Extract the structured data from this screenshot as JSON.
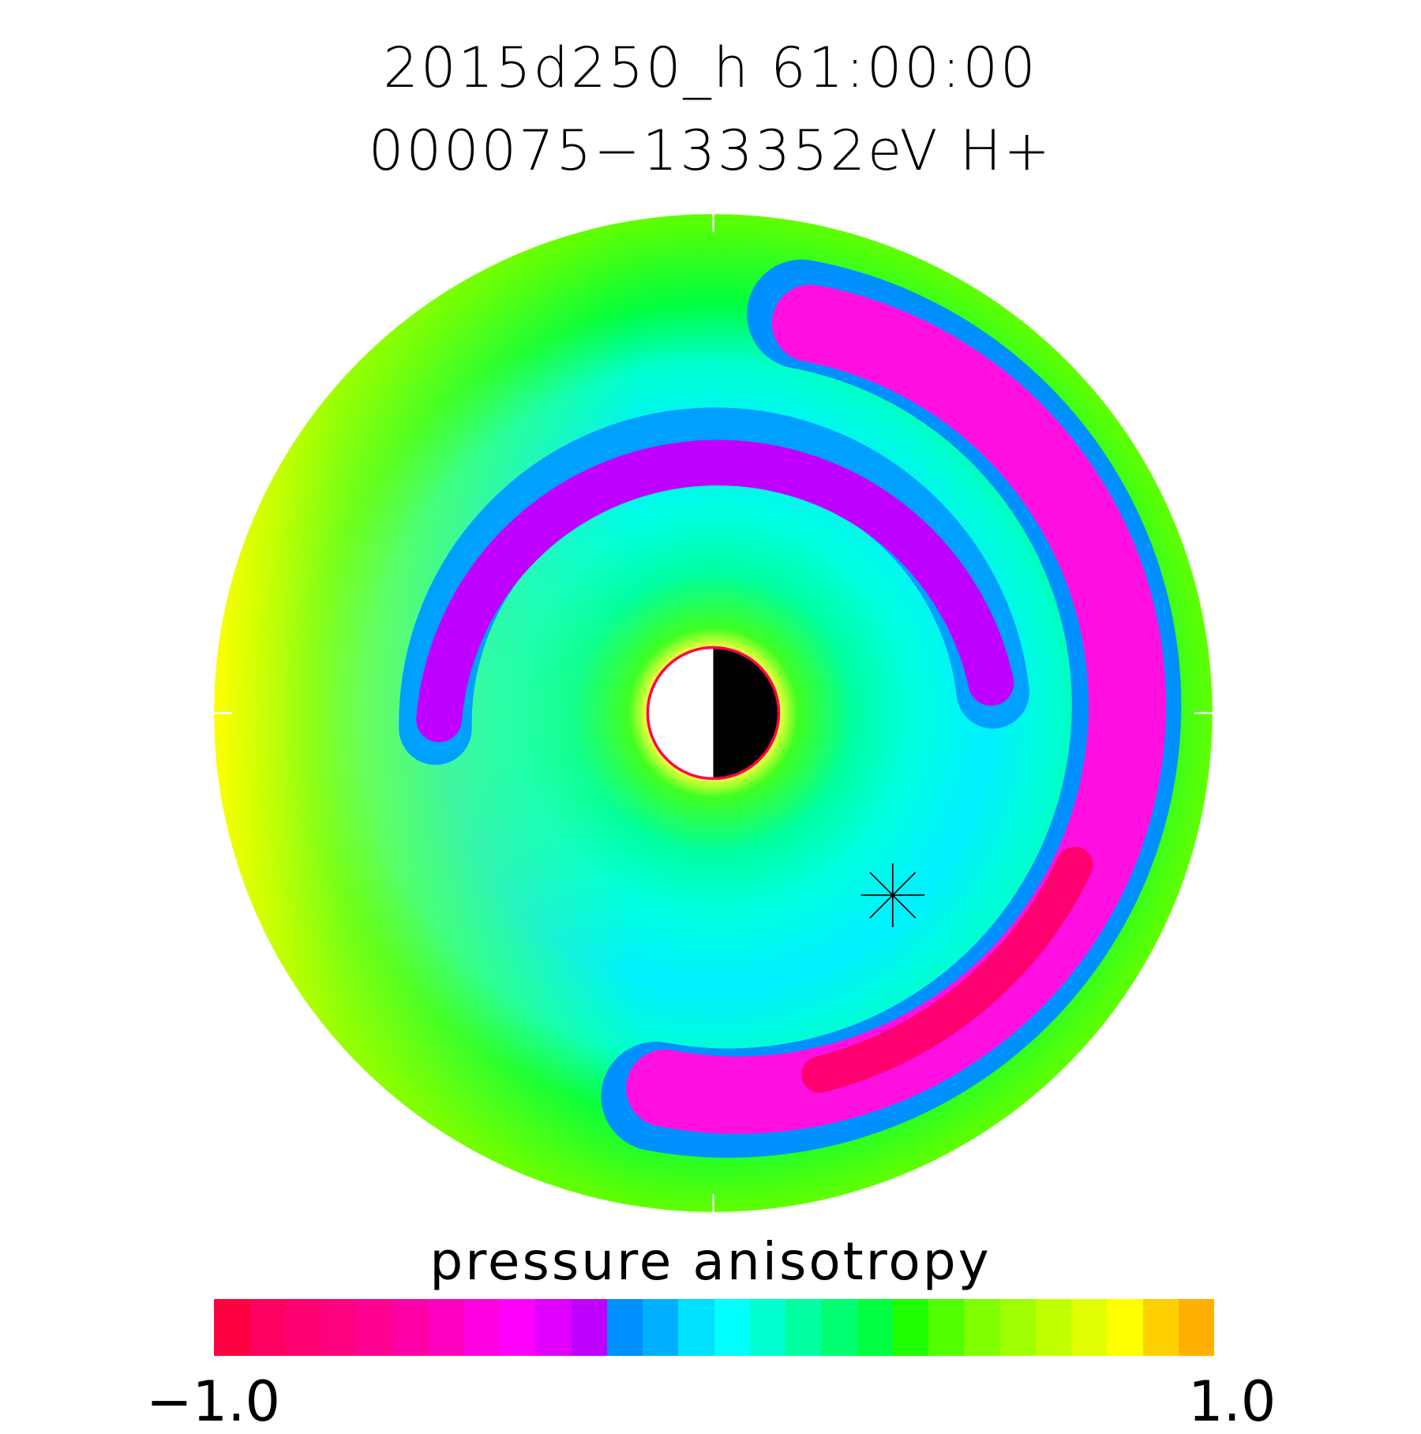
{
  "header": {
    "line1": "2015d250_h  61:00:00",
    "line2": "000075−133352eV H+"
  },
  "chart_data": {
    "type": "heatmap",
    "projection": "polar equatorial plane",
    "title": "2015d250_h  61:00:00",
    "subtitle": "000075−133352eV H+",
    "colorbar": {
      "label": "pressure anisotropy",
      "range": [
        -1.0,
        1.0
      ],
      "tick_labels": [
        "−1.0",
        "1.0"
      ],
      "colors": [
        "#ff0040",
        "#ff0060",
        "#ff0070",
        "#ff0080",
        "#ff0090",
        "#ff00a8",
        "#ff00c0",
        "#ff00e0",
        "#ff00ff",
        "#e000ff",
        "#c000ff",
        "#0090ff",
        "#00b0ff",
        "#00e0ff",
        "#00ffff",
        "#00ffd0",
        "#00ffa0",
        "#00ff70",
        "#00ff40",
        "#20ff00",
        "#50ff00",
        "#80ff00",
        "#a0ff00",
        "#c0ff00",
        "#e0ff00",
        "#ffff00",
        "#ffd000",
        "#ffb000"
      ]
    },
    "marker": "asterisk",
    "colors": {
      "earth_outline": "#ff0050",
      "day": "#ffffff",
      "night": "#000000"
    }
  }
}
